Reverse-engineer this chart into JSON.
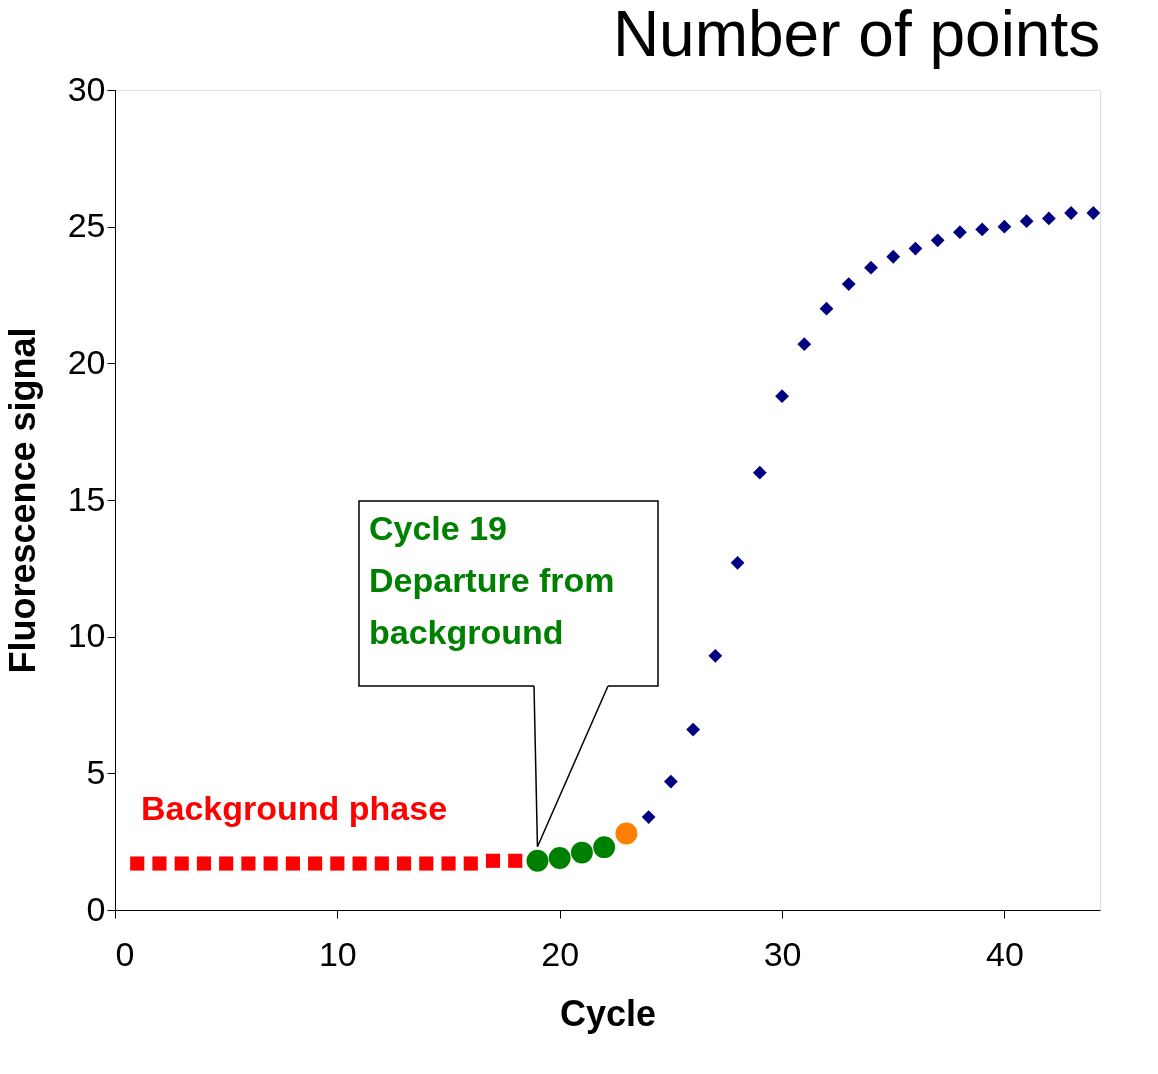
{
  "chart_data": {
    "type": "scatter",
    "title": "Number of points",
    "xlabel": "Cycle",
    "ylabel": "Fluorescence signal",
    "xlim": [
      0,
      44.3
    ],
    "ylim": [
      0,
      30
    ],
    "xticks": [
      0,
      10,
      20,
      30,
      40
    ],
    "yticks": [
      0,
      5,
      10,
      15,
      20,
      25,
      30
    ],
    "grid": false,
    "series": [
      {
        "color": "#ff0000",
        "marker": "square",
        "x": [
          1,
          2,
          3,
          4,
          5,
          6,
          7,
          8,
          9,
          10,
          11,
          12,
          13,
          14,
          15,
          16,
          17,
          18
        ],
        "values": [
          1.7,
          1.7,
          1.7,
          1.7,
          1.7,
          1.7,
          1.7,
          1.7,
          1.7,
          1.7,
          1.7,
          1.7,
          1.7,
          1.7,
          1.7,
          1.7,
          1.8,
          1.8
        ]
      },
      {
        "color": "#008000",
        "marker": "circle",
        "x": [
          19,
          20,
          21,
          22
        ],
        "values": [
          1.8,
          1.9,
          2.1,
          2.3
        ]
      },
      {
        "color": "#ff7f00",
        "marker": "circle",
        "x": [
          23
        ],
        "values": [
          2.8
        ]
      },
      {
        "color": "#000080",
        "marker": "diamond",
        "x": [
          24,
          25,
          26,
          27,
          28,
          29,
          30,
          31,
          32,
          33,
          34,
          35,
          36,
          37,
          38,
          39,
          40,
          41,
          42,
          43,
          44
        ],
        "values": [
          3.4,
          4.7,
          6.6,
          9.3,
          12.7,
          16.0,
          18.8,
          20.7,
          22.0,
          22.9,
          23.5,
          23.9,
          24.2,
          24.5,
          24.8,
          24.9,
          25.0,
          25.2,
          25.3,
          25.5,
          25.5
        ]
      }
    ],
    "annotations": [
      "Background phase",
      "Cycle 19\nDeparture from\nbackground"
    ]
  }
}
